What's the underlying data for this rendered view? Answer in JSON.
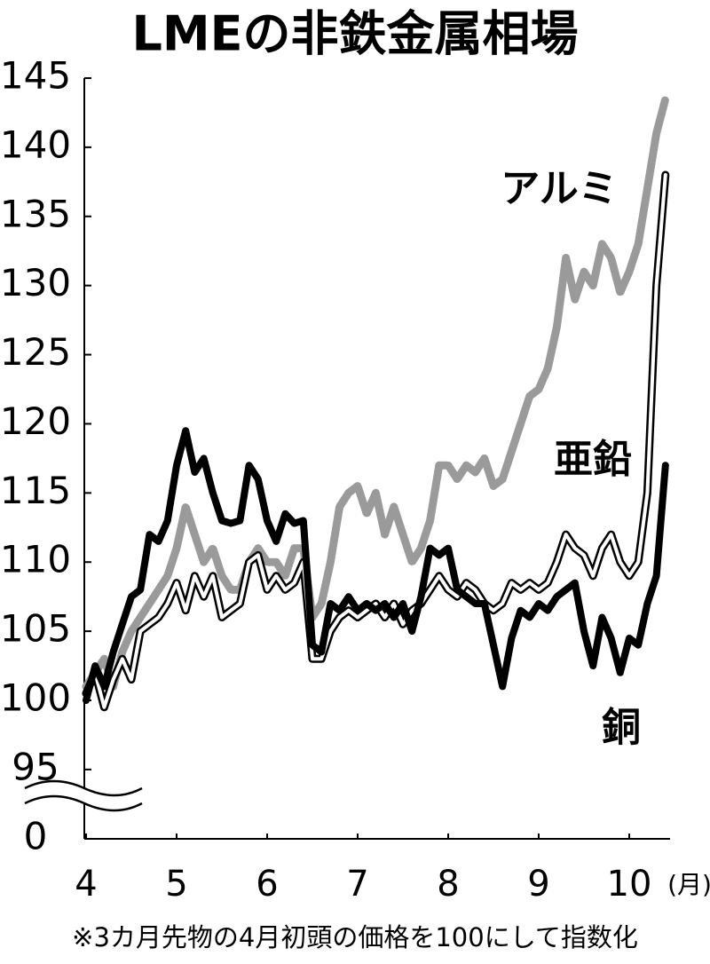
{
  "chart_data": {
    "type": "line",
    "title": "LMEの非鉄金属相場",
    "x_unit": "(月)",
    "footnote": "※3カ月先物の4月初頭の価格を100にして指数化",
    "y_break_label": "0",
    "xlim": [
      4,
      10.5
    ],
    "xticks": [
      4,
      5,
      6,
      7,
      8,
      9,
      10
    ],
    "ylim": [
      90,
      145
    ],
    "yticks": [
      95,
      100,
      105,
      110,
      115,
      120,
      125,
      130,
      135,
      140,
      145
    ],
    "x": [
      4.0,
      4.1,
      4.2,
      4.3,
      4.4,
      4.5,
      4.6,
      4.7,
      4.8,
      4.9,
      5.0,
      5.1,
      5.2,
      5.3,
      5.4,
      5.5,
      5.6,
      5.7,
      5.8,
      5.9,
      6.0,
      6.1,
      6.2,
      6.3,
      6.4,
      6.5,
      6.6,
      6.7,
      6.8,
      6.9,
      7.0,
      7.1,
      7.2,
      7.3,
      7.4,
      7.5,
      7.6,
      7.7,
      7.8,
      7.9,
      8.0,
      8.1,
      8.2,
      8.3,
      8.4,
      8.5,
      8.6,
      8.7,
      8.8,
      8.9,
      9.0,
      9.1,
      9.2,
      9.3,
      9.4,
      9.5,
      9.6,
      9.7,
      9.8,
      9.9,
      10.0,
      10.1,
      10.2,
      10.3,
      10.4
    ],
    "series": [
      {
        "name": "アルミ",
        "color": "#9a9a9a",
        "values": [
          101,
          102,
          103,
          101,
          103.5,
          105,
          106,
          107,
          108,
          109,
          111,
          114,
          112,
          110,
          111,
          109,
          108,
          108,
          110,
          111,
          110,
          110,
          109,
          111,
          111,
          106,
          107,
          110,
          114,
          115,
          115.5,
          113.5,
          115,
          112,
          114,
          112,
          110,
          111,
          113,
          117,
          117,
          116,
          117,
          116.5,
          117.5,
          115.5,
          116,
          118,
          120,
          122,
          122.5,
          124,
          127,
          132,
          129,
          131,
          130,
          133,
          132,
          129.5,
          131,
          133,
          137,
          141,
          143.5
        ]
      },
      {
        "name": "亜鉛",
        "color": "#ffffff",
        "values": [
          100.5,
          102,
          99.5,
          101.5,
          103,
          101.5,
          105,
          105.5,
          106,
          107,
          108.5,
          106.5,
          109,
          107.5,
          109,
          106,
          106.5,
          107,
          110,
          110.5,
          108,
          109,
          108,
          108.5,
          110,
          103,
          103,
          105,
          106,
          106.5,
          106,
          106.5,
          107,
          106,
          107,
          105.5,
          106.5,
          107,
          108,
          109,
          108,
          107.5,
          108.5,
          108,
          107,
          106.5,
          107,
          108.5,
          108,
          108.5,
          108,
          108.5,
          110,
          112,
          111,
          110.5,
          109,
          111,
          112,
          110,
          109,
          110,
          115,
          130,
          138
        ]
      },
      {
        "name": "銅",
        "color": "#000000",
        "values": [
          100,
          102.5,
          101,
          103.5,
          105.5,
          107.5,
          108,
          112,
          111.5,
          113,
          117,
          119.5,
          116.5,
          117.5,
          115,
          113,
          112.8,
          113,
          117,
          116,
          113,
          111.5,
          113.5,
          112.8,
          113,
          104,
          103.5,
          107,
          106.5,
          107.5,
          106.5,
          107,
          106.5,
          107,
          106,
          107,
          105,
          107.5,
          111,
          110.5,
          111,
          108,
          107.5,
          107,
          107,
          104,
          101,
          104.5,
          106.5,
          106,
          107,
          106.5,
          107.5,
          108,
          108.5,
          105,
          102.5,
          106,
          104.5,
          102,
          104.5,
          104,
          107,
          109,
          117
        ]
      }
    ]
  }
}
